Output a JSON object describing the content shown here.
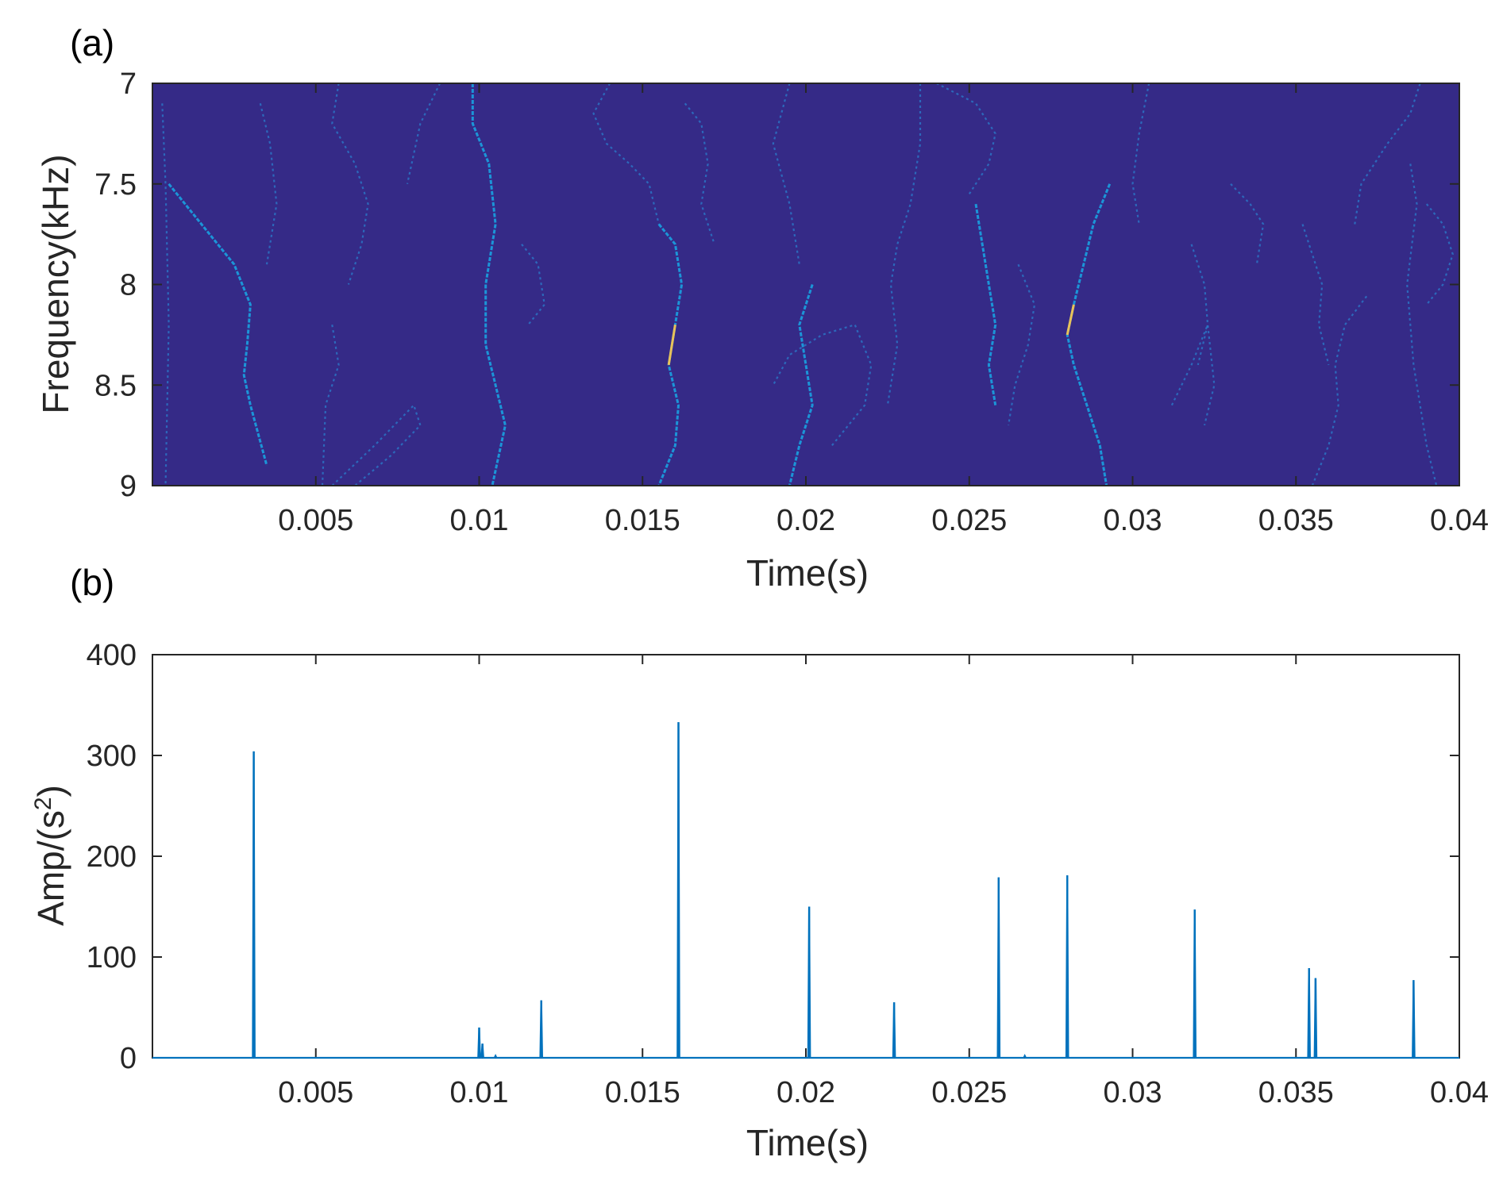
{
  "chart_data": [
    {
      "panel": "(a)",
      "type": "heatmap",
      "xlabel": "Time(s)",
      "ylabel": "Frequency(kHz)",
      "xlim": [
        0,
        0.04
      ],
      "ylim": [
        9,
        7
      ],
      "xticks": [
        0.005,
        0.01,
        0.015,
        0.02,
        0.025,
        0.03,
        0.035,
        0.04
      ],
      "xtick_labels": [
        "0.005",
        "0.01",
        "0.015",
        "0.02",
        "0.025",
        "0.03",
        "0.035",
        "0.04"
      ],
      "yticks": [
        7,
        7.5,
        8,
        8.5,
        9
      ],
      "ytick_labels": [
        "7",
        "7.5",
        "8",
        "8.5",
        "9"
      ],
      "background_color": "#352a87",
      "ridge_color": "#1a9bdc",
      "highlight_color": "#e8c25a",
      "ridges": [
        {
          "x": [
            0.0003,
            0.0004,
            0.0005,
            0.0004
          ],
          "y": [
            7.1,
            7.5,
            8.2,
            9.0
          ],
          "strong": false
        },
        {
          "x": [
            0.0005,
            0.0015,
            0.0025,
            0.003,
            0.0029,
            0.0028,
            0.003,
            0.0035
          ],
          "y": [
            7.5,
            7.7,
            7.9,
            8.1,
            8.3,
            8.45,
            8.6,
            8.9
          ],
          "strong": true
        },
        {
          "x": [
            0.0033,
            0.0036,
            0.0038,
            0.0035
          ],
          "y": [
            7.1,
            7.3,
            7.6,
            7.9
          ],
          "strong": false
        },
        {
          "x": [
            0.0055,
            0.0057,
            0.0053,
            0.0052
          ],
          "y": [
            8.2,
            8.4,
            8.6,
            9.0
          ],
          "strong": false
        },
        {
          "x": [
            0.0057,
            0.0055,
            0.0062,
            0.0066,
            0.0064,
            0.006
          ],
          "y": [
            7.0,
            7.2,
            7.4,
            7.6,
            7.8,
            8.0
          ],
          "strong": false
        },
        {
          "x": [
            0.0055,
            0.0068,
            0.008,
            0.0082,
            0.0073,
            0.0062
          ],
          "y": [
            9.0,
            8.8,
            8.6,
            8.7,
            8.85,
            9.0
          ],
          "strong": false
        },
        {
          "x": [
            0.0088,
            0.0082,
            0.0078
          ],
          "y": [
            7.0,
            7.2,
            7.5
          ],
          "strong": false
        },
        {
          "x": [
            0.0098,
            0.0098,
            0.0103,
            0.0105,
            0.0102,
            0.0102,
            0.0105,
            0.0108,
            0.0104
          ],
          "y": [
            7.0,
            7.2,
            7.4,
            7.7,
            8.0,
            8.3,
            8.5,
            8.7,
            9.0
          ],
          "strong": true
        },
        {
          "x": [
            0.0113,
            0.0118,
            0.012,
            0.0115
          ],
          "y": [
            7.8,
            7.9,
            8.1,
            8.2
          ],
          "strong": false
        },
        {
          "x": [
            0.014,
            0.0135,
            0.0139,
            0.0146,
            0.0152,
            0.0155
          ],
          "y": [
            7.0,
            7.15,
            7.3,
            7.4,
            7.5,
            7.7
          ],
          "strong": false
        },
        {
          "x": [
            0.0155,
            0.016,
            0.0162,
            0.016,
            0.0158,
            0.0161,
            0.016,
            0.0155
          ],
          "y": [
            7.7,
            7.8,
            8.0,
            8.2,
            8.4,
            8.6,
            8.8,
            9.0
          ],
          "strong": true
        },
        {
          "x": [
            0.0163,
            0.0168,
            0.017,
            0.0168,
            0.0172
          ],
          "y": [
            7.1,
            7.2,
            7.4,
            7.6,
            7.8
          ],
          "strong": false
        },
        {
          "x": [
            0.0195,
            0.019,
            0.0195,
            0.0198
          ],
          "y": [
            7.0,
            7.3,
            7.6,
            7.9
          ],
          "strong": false
        },
        {
          "x": [
            0.0202,
            0.0198,
            0.02,
            0.0202,
            0.0198,
            0.0195
          ],
          "y": [
            8.0,
            8.2,
            8.4,
            8.6,
            8.8,
            9.0
          ],
          "strong": true
        },
        {
          "x": [
            0.0208,
            0.0218,
            0.022,
            0.0215,
            0.0205,
            0.0195,
            0.019
          ],
          "y": [
            8.8,
            8.6,
            8.4,
            8.2,
            8.25,
            8.35,
            8.5
          ],
          "strong": false
        },
        {
          "x": [
            0.0235,
            0.0235,
            0.0232,
            0.0228,
            0.0226,
            0.0228,
            0.0225
          ],
          "y": [
            7.0,
            7.3,
            7.6,
            7.8,
            8.0,
            8.3,
            8.6
          ],
          "strong": false
        },
        {
          "x": [
            0.024,
            0.0252,
            0.0258,
            0.0256,
            0.025
          ],
          "y": [
            7.0,
            7.1,
            7.25,
            7.4,
            7.55
          ],
          "strong": false
        },
        {
          "x": [
            0.0252,
            0.0254,
            0.0256,
            0.0258,
            0.0256,
            0.0258
          ],
          "y": [
            7.6,
            7.8,
            8.0,
            8.2,
            8.4,
            8.6
          ],
          "strong": true
        },
        {
          "x": [
            0.0265,
            0.027,
            0.0268,
            0.0264,
            0.0262
          ],
          "y": [
            7.9,
            8.1,
            8.3,
            8.5,
            8.7
          ],
          "strong": false
        },
        {
          "x": [
            0.0293,
            0.0288,
            0.0285,
            0.0282,
            0.028,
            0.0282,
            0.0286,
            0.029,
            0.0292
          ],
          "y": [
            7.5,
            7.7,
            7.9,
            8.1,
            8.25,
            8.4,
            8.6,
            8.8,
            9.0
          ],
          "strong": true
        },
        {
          "x": [
            0.0305,
            0.0302,
            0.03,
            0.0302
          ],
          "y": [
            7.0,
            7.25,
            7.5,
            7.7
          ],
          "strong": false
        },
        {
          "x": [
            0.0318,
            0.0322,
            0.0323,
            0.032
          ],
          "y": [
            7.8,
            8.0,
            8.2,
            8.4
          ],
          "strong": false
        },
        {
          "x": [
            0.0312,
            0.0318,
            0.0323,
            0.0325,
            0.0322
          ],
          "y": [
            8.6,
            8.4,
            8.2,
            8.5,
            8.7
          ],
          "strong": false
        },
        {
          "x": [
            0.033,
            0.0336,
            0.034,
            0.0338
          ],
          "y": [
            7.5,
            7.6,
            7.7,
            7.9
          ],
          "strong": false
        },
        {
          "x": [
            0.0352,
            0.0355,
            0.0358,
            0.0357,
            0.036
          ],
          "y": [
            7.7,
            7.85,
            8.0,
            8.2,
            8.4
          ],
          "strong": false
        },
        {
          "x": [
            0.0355,
            0.036,
            0.0363,
            0.0362,
            0.0365,
            0.0372
          ],
          "y": [
            9.0,
            8.8,
            8.6,
            8.4,
            8.2,
            8.05
          ],
          "strong": false
        },
        {
          "x": [
            0.0368,
            0.037,
            0.0378,
            0.0385,
            0.0388
          ],
          "y": [
            7.7,
            7.5,
            7.3,
            7.15,
            7.0
          ],
          "strong": false
        },
        {
          "x": [
            0.0385,
            0.0387,
            0.0384,
            0.0386,
            0.039,
            0.0393
          ],
          "y": [
            7.4,
            7.6,
            8.0,
            8.4,
            8.8,
            9.0
          ],
          "strong": false
        },
        {
          "x": [
            0.039,
            0.0395,
            0.0398,
            0.0395,
            0.039
          ],
          "y": [
            7.6,
            7.7,
            7.85,
            8.0,
            8.1
          ],
          "strong": false
        }
      ]
    },
    {
      "panel": "(b)",
      "type": "line",
      "xlabel": "Time(s)",
      "ylabel": "Amp/(s",
      "ylabel_sup": "2",
      "ylabel_end": ")",
      "xlim": [
        0,
        0.04
      ],
      "ylim": [
        0,
        400
      ],
      "xticks": [
        0.005,
        0.01,
        0.015,
        0.02,
        0.025,
        0.03,
        0.035,
        0.04
      ],
      "xtick_labels": [
        "0.005",
        "0.01",
        "0.015",
        "0.02",
        "0.025",
        "0.03",
        "0.035",
        "0.04"
      ],
      "yticks": [
        0,
        100,
        200,
        300,
        400
      ],
      "ytick_labels": [
        "0",
        "100",
        "200",
        "300",
        "400"
      ],
      "line_color": "#0072bd",
      "peaks": [
        {
          "x": 0.0031,
          "y": 304
        },
        {
          "x": 0.01,
          "y": 30
        },
        {
          "x": 0.0101,
          "y": 14
        },
        {
          "x": 0.0105,
          "y": 2
        },
        {
          "x": 0.0119,
          "y": 57
        },
        {
          "x": 0.0161,
          "y": 333
        },
        {
          "x": 0.0201,
          "y": 150
        },
        {
          "x": 0.0227,
          "y": 55
        },
        {
          "x": 0.0259,
          "y": 179
        },
        {
          "x": 0.0267,
          "y": 2
        },
        {
          "x": 0.028,
          "y": 181
        },
        {
          "x": 0.0319,
          "y": 147
        },
        {
          "x": 0.0354,
          "y": 89
        },
        {
          "x": 0.0356,
          "y": 79
        },
        {
          "x": 0.0386,
          "y": 77
        }
      ]
    }
  ]
}
